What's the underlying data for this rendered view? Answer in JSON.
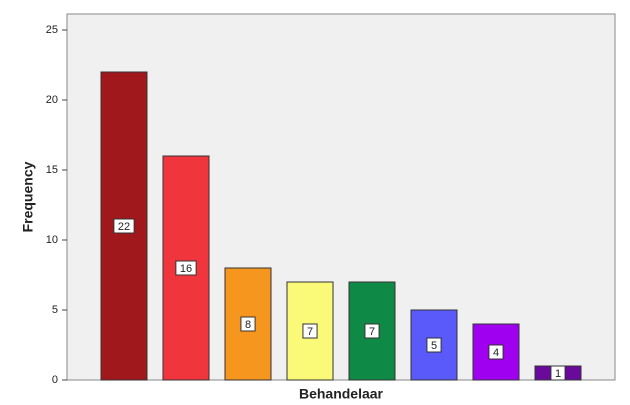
{
  "chart_data": {
    "type": "bar",
    "categories": [
      null,
      null,
      null,
      null,
      null,
      null,
      null,
      null
    ],
    "values": [
      22,
      16,
      8,
      7,
      7,
      5,
      4,
      1
    ],
    "colors": [
      "#a0171c",
      "#f0353d",
      "#f7961f",
      "#fafa78",
      "#0e8a46",
      "#5a5afa",
      "#a000f0",
      "#6a0a9c"
    ],
    "x_label": "Behandelaar",
    "y_label": "Frequency",
    "ylim": [
      0,
      25
    ],
    "yticks": [
      0,
      5,
      10,
      15,
      20,
      25
    ]
  }
}
